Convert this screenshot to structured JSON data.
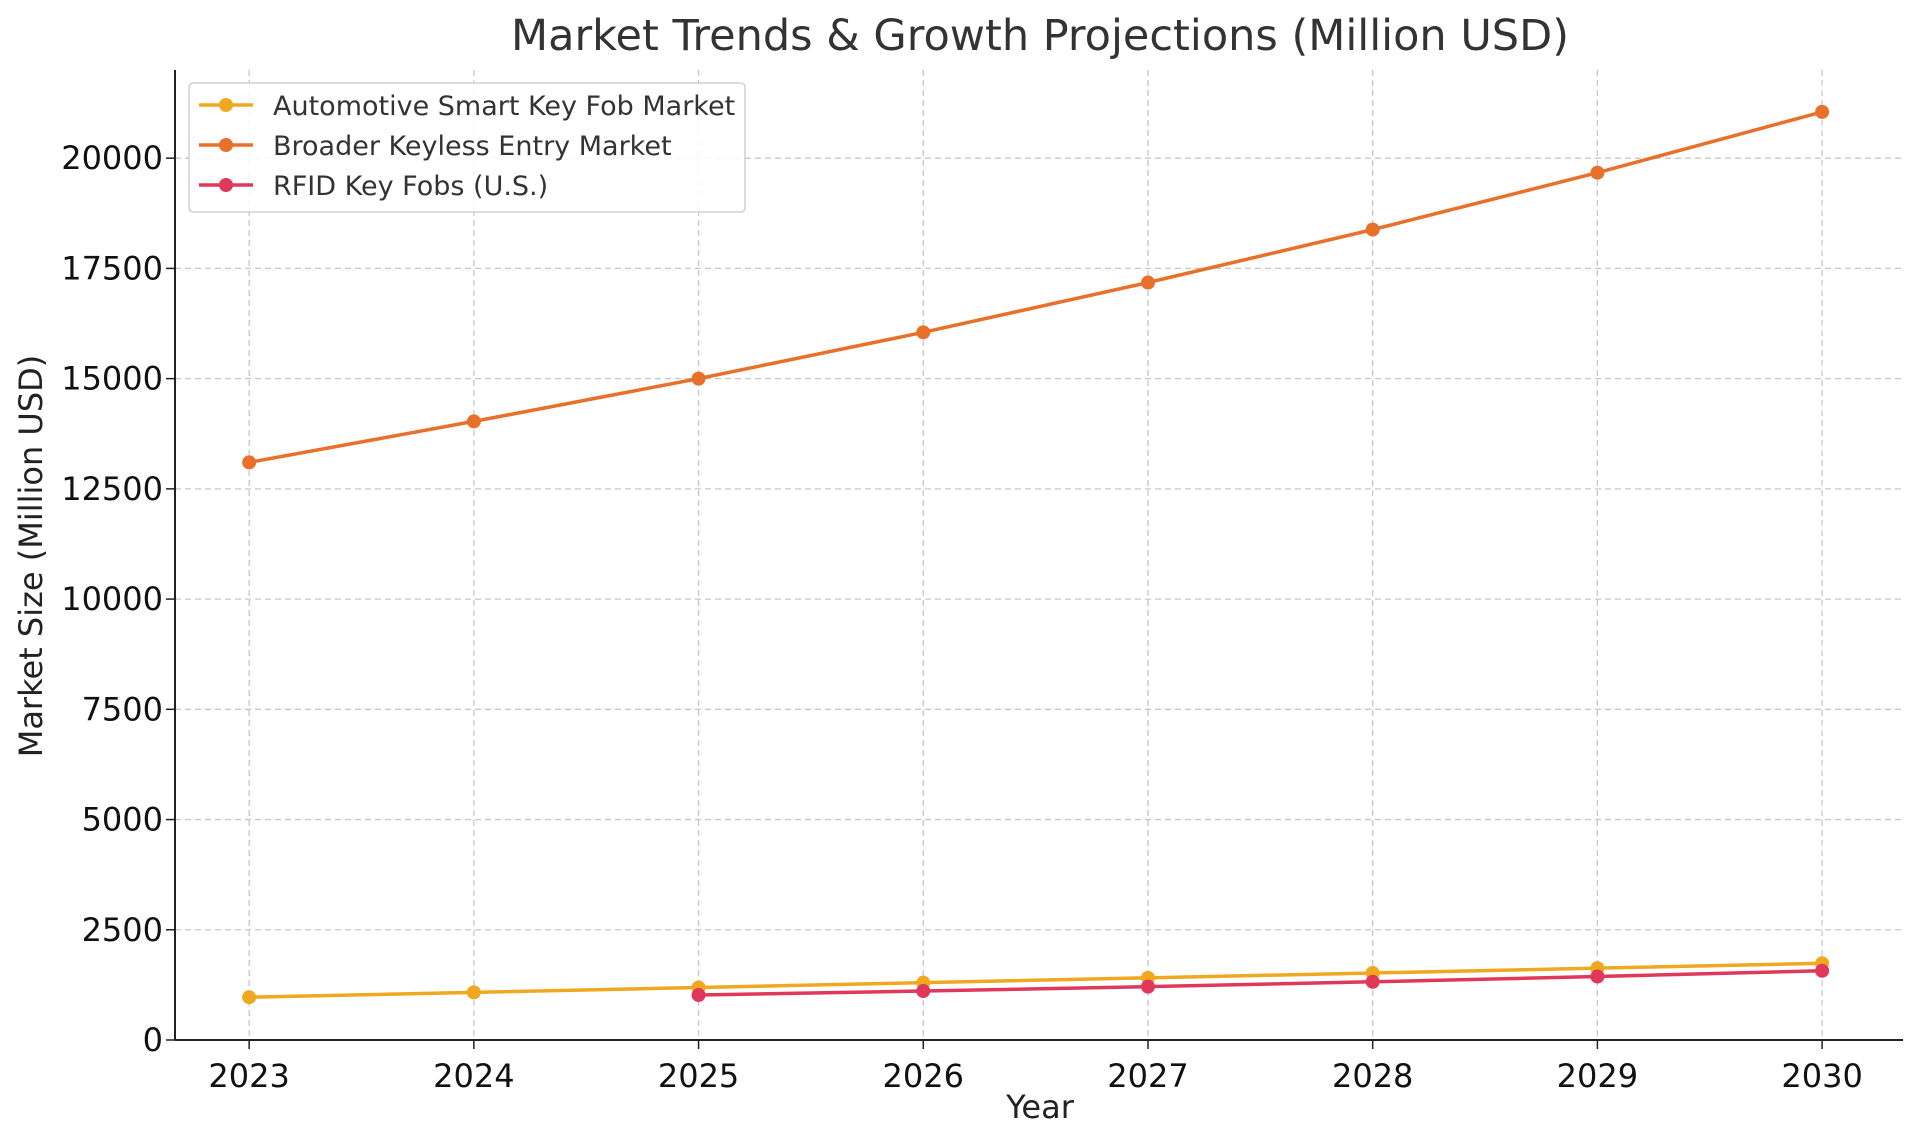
{
  "chart_data": {
    "type": "line",
    "title": "Market Trends & Growth Projections (Million USD)",
    "xlabel": "Year",
    "ylabel": "Market Size (Million USD)",
    "x": [
      2023,
      2024,
      2025,
      2026,
      2027,
      2028,
      2029,
      2030
    ],
    "xlim": [
      2022.67,
      2030.36
    ],
    "ylim": [
      0,
      22000
    ],
    "yticks": [
      0,
      2500,
      5000,
      7500,
      10000,
      12500,
      15000,
      17500,
      20000
    ],
    "grid": true,
    "legend_position": "top-left",
    "series": [
      {
        "name": "Automotive Smart Key Fob Market",
        "color": "#F0A820",
        "values": [
          970,
          1080,
          1190,
          1300,
          1410,
          1520,
          1630,
          1740
        ]
      },
      {
        "name": "Broader Keyless Entry Market",
        "color": "#E8702A",
        "values": [
          13100,
          14030,
          15000,
          16050,
          17180,
          18380,
          19670,
          21050
        ]
      },
      {
        "name": "RFID Key Fobs (U.S.)",
        "color": "#E0385A",
        "values": [
          null,
          null,
          1020,
          1110,
          1210,
          1320,
          1440,
          1570
        ]
      }
    ]
  }
}
